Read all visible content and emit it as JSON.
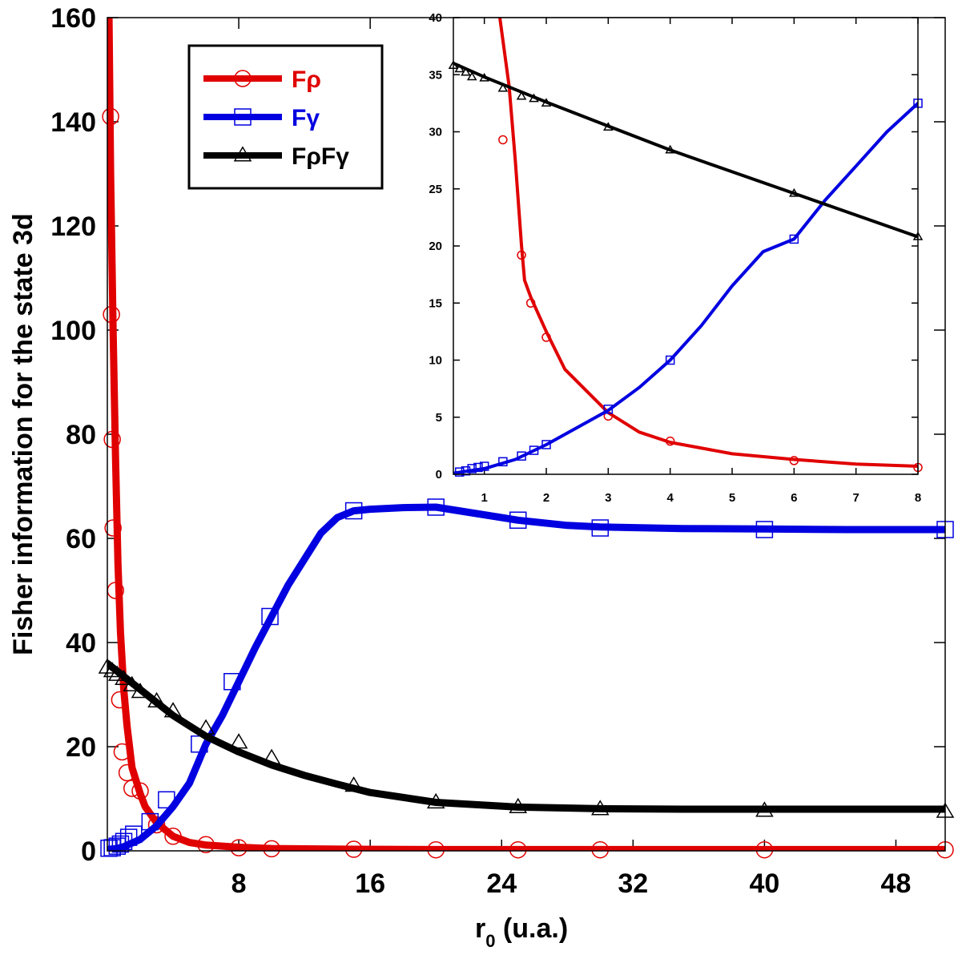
{
  "chart_data": [
    {
      "type": "line",
      "id": "main",
      "title": "",
      "xlabel": "r",
      "xlabel_subscript": "0",
      "xlabel_suffix": " (u.a.)",
      "ylabel": "Fisher information for the state 3d",
      "xlim": [
        0,
        51
      ],
      "ylim": [
        0,
        160
      ],
      "xticks": [
        8,
        16,
        24,
        32,
        40,
        48
      ],
      "xtick_labels": [
        "8",
        "16",
        "24",
        "32",
        "40",
        "48"
      ],
      "yticks": [
        0,
        20,
        40,
        60,
        80,
        100,
        120,
        140,
        160
      ],
      "ytick_labels": [
        "0",
        "20",
        "40",
        "60",
        "80",
        "100",
        "120",
        "140",
        "160"
      ],
      "legend_position": "top-left",
      "series": [
        {
          "name": "Fρ",
          "color": "#e00000",
          "marker": "circle",
          "line": [
            [
              0.1,
              160
            ],
            [
              0.2,
              130
            ],
            [
              0.35,
              100
            ],
            [
              0.5,
              75
            ],
            [
              0.65,
              55
            ],
            [
              0.8,
              42
            ],
            [
              1,
              31
            ],
            [
              1.2,
              24
            ],
            [
              1.5,
              16
            ],
            [
              1.75,
              13.5
            ],
            [
              2,
              11
            ],
            [
              2.3,
              8.5
            ],
            [
              3,
              5.4
            ],
            [
              4,
              2.8
            ],
            [
              5,
              1.6
            ],
            [
              6,
              1.1
            ],
            [
              8,
              0.7
            ],
            [
              10,
              0.45
            ],
            [
              15,
              0.3
            ],
            [
              20,
              0.25
            ],
            [
              25,
              0.25
            ],
            [
              30,
              0.25
            ],
            [
              40,
              0.25
            ],
            [
              51,
              0.25
            ]
          ],
          "markers": [
            [
              0.2,
              141
            ],
            [
              0.25,
              103
            ],
            [
              0.3,
              79
            ],
            [
              0.35,
              62
            ],
            [
              0.5,
              50
            ],
            [
              0.75,
              29
            ],
            [
              0.9,
              19
            ],
            [
              1.2,
              15
            ],
            [
              1.5,
              12
            ],
            [
              2,
              11.5
            ],
            [
              3,
              5
            ],
            [
              4,
              2.8
            ],
            [
              6,
              1.2
            ],
            [
              8,
              0.6
            ],
            [
              10,
              0.4
            ],
            [
              15,
              0.3
            ],
            [
              20,
              0.2
            ],
            [
              25,
              0.2
            ],
            [
              30,
              0.2
            ],
            [
              40,
              0.2
            ],
            [
              51,
              0.2
            ]
          ]
        },
        {
          "name": "Fγ",
          "color": "#0000e0",
          "marker": "square",
          "line": [
            [
              0.1,
              0.3
            ],
            [
              0.5,
              0.4
            ],
            [
              1,
              0.8
            ],
            [
              2,
              2.2
            ],
            [
              3,
              4.8
            ],
            [
              4,
              8.5
            ],
            [
              5,
              13
            ],
            [
              6,
              20.5
            ],
            [
              7,
              26
            ],
            [
              8,
              32.5
            ],
            [
              9,
              39
            ],
            [
              10,
              45
            ],
            [
              11,
              51
            ],
            [
              12,
              56
            ],
            [
              13,
              61
            ],
            [
              14,
              64
            ],
            [
              15,
              65.3
            ],
            [
              16,
              65.6
            ],
            [
              18,
              65.9
            ],
            [
              20,
              66
            ],
            [
              22,
              65
            ],
            [
              25,
              63.5
            ],
            [
              28,
              62.5
            ],
            [
              30,
              62.2
            ],
            [
              35,
              61.9
            ],
            [
              40,
              61.8
            ],
            [
              45,
              61.7
            ],
            [
              51,
              61.7
            ]
          ],
          "markers": [
            [
              0.1,
              0.5
            ],
            [
              0.3,
              0.6
            ],
            [
              0.6,
              0.9
            ],
            [
              0.8,
              1.3
            ],
            [
              1,
              1.8
            ],
            [
              1.3,
              2.6
            ],
            [
              1.6,
              3.2
            ],
            [
              2.6,
              5.6
            ],
            [
              3.6,
              9.8
            ],
            [
              5.6,
              20.5
            ],
            [
              7.6,
              32.5
            ],
            [
              9.9,
              45
            ],
            [
              15,
              65.3
            ],
            [
              20,
              66
            ],
            [
              25,
              63.5
            ],
            [
              30,
              62
            ],
            [
              40,
              61.7
            ],
            [
              51,
              61.7
            ]
          ]
        },
        {
          "name": "FρFγ",
          "color": "#000000",
          "marker": "triangle",
          "line": [
            [
              0,
              36
            ],
            [
              1,
              33.5
            ],
            [
              2,
              31
            ],
            [
              3,
              28.5
            ],
            [
              4,
              26
            ],
            [
              5,
              24
            ],
            [
              6,
              22
            ],
            [
              7,
              20.5
            ],
            [
              8,
              19
            ],
            [
              10,
              16.5
            ],
            [
              12,
              14.5
            ],
            [
              14,
              12.8
            ],
            [
              16,
              11.2
            ],
            [
              20,
              9.3
            ],
            [
              25,
              8.4
            ],
            [
              30,
              8.1
            ],
            [
              35,
              8
            ],
            [
              40,
              8
            ],
            [
              45,
              8
            ],
            [
              51,
              8
            ]
          ],
          "markers": [
            [
              0,
              35.2
            ],
            [
              0.3,
              34.5
            ],
            [
              0.6,
              33.8
            ],
            [
              1,
              33
            ],
            [
              1.5,
              31.8
            ],
            [
              2,
              30.5
            ],
            [
              3,
              28.7
            ],
            [
              4,
              26.8
            ],
            [
              6,
              23.5
            ],
            [
              8,
              20.8
            ],
            [
              10,
              17.8
            ],
            [
              15,
              12.5
            ],
            [
              20,
              9.3
            ],
            [
              25,
              8.4
            ],
            [
              30,
              8
            ],
            [
              40,
              7.7
            ],
            [
              51,
              7.5
            ]
          ]
        }
      ]
    },
    {
      "type": "line",
      "id": "inset",
      "title": "",
      "xlabel": "",
      "ylabel": "",
      "xlim": [
        0.5,
        8
      ],
      "ylim": [
        0,
        40
      ],
      "xticks": [
        1,
        2,
        3,
        4,
        5,
        6,
        7,
        8
      ],
      "xtick_labels": [
        "1",
        "2",
        "3",
        "4",
        "5",
        "6",
        "7",
        "8"
      ],
      "yticks": [
        0,
        5,
        10,
        15,
        20,
        25,
        30,
        35,
        40
      ],
      "ytick_labels": [
        "0",
        "5",
        "10",
        "15",
        "20",
        "25",
        "30",
        "35",
        "40"
      ],
      "series": [
        {
          "name": "Fρ",
          "color": "#e00000",
          "marker": "circle",
          "line": [
            [
              1.25,
              40
            ],
            [
              1.4,
              34
            ],
            [
              1.5,
              27.5
            ],
            [
              1.6,
              20
            ],
            [
              1.65,
              17
            ],
            [
              1.75,
              15.5
            ],
            [
              2,
              12.5
            ],
            [
              2.3,
              9.2
            ],
            [
              3,
              5.4
            ],
            [
              3.5,
              3.7
            ],
            [
              4,
              2.8
            ],
            [
              5,
              1.8
            ],
            [
              6,
              1.3
            ],
            [
              7,
              0.9
            ],
            [
              8,
              0.7
            ]
          ],
          "markers": [
            [
              1.3,
              29.3
            ],
            [
              1.6,
              19.2
            ],
            [
              1.75,
              15
            ],
            [
              2,
              12
            ],
            [
              3,
              5.1
            ],
            [
              4,
              2.9
            ],
            [
              6,
              1.2
            ],
            [
              8,
              0.6
            ]
          ]
        },
        {
          "name": "Fγ",
          "color": "#0000e0",
          "marker": "square",
          "line": [
            [
              0.5,
              0.1
            ],
            [
              1,
              0.5
            ],
            [
              1.5,
              1.3
            ],
            [
              2,
              2.6
            ],
            [
              2.5,
              4.1
            ],
            [
              3,
              5.6
            ],
            [
              3.5,
              7.6
            ],
            [
              4,
              10
            ],
            [
              4.5,
              13
            ],
            [
              5,
              16.5
            ],
            [
              5.5,
              19.5
            ],
            [
              6,
              20.6
            ],
            [
              6.5,
              24
            ],
            [
              7,
              27
            ],
            [
              7.5,
              30
            ],
            [
              8,
              32.5
            ]
          ],
          "markers": [
            [
              0.6,
              0.2
            ],
            [
              0.7,
              0.3
            ],
            [
              0.8,
              0.5
            ],
            [
              0.9,
              0.6
            ],
            [
              1,
              0.7
            ],
            [
              1.3,
              1.1
            ],
            [
              1.6,
              1.6
            ],
            [
              1.8,
              2.1
            ],
            [
              2,
              2.6
            ],
            [
              3,
              5.7
            ],
            [
              4,
              10
            ],
            [
              6,
              20.6
            ],
            [
              8,
              32.5
            ]
          ]
        },
        {
          "name": "FρFγ",
          "color": "#000000",
          "marker": "triangle",
          "line": [
            [
              0.5,
              36
            ],
            [
              1,
              34.8
            ],
            [
              2,
              32.6
            ],
            [
              3,
              30.5
            ],
            [
              4,
              28.4
            ],
            [
              5,
              26.5
            ],
            [
              6,
              24.6
            ],
            [
              7,
              22.7
            ],
            [
              8,
              20.8
            ]
          ],
          "markers": [
            [
              0.5,
              35.8
            ],
            [
              0.6,
              35.5
            ],
            [
              0.7,
              35.2
            ],
            [
              0.8,
              34.8
            ],
            [
              1,
              34.7
            ],
            [
              1.3,
              33.8
            ],
            [
              1.6,
              33.1
            ],
            [
              1.8,
              32.9
            ],
            [
              2,
              32.5
            ],
            [
              3,
              30.4
            ],
            [
              4,
              28.4
            ],
            [
              6,
              24.6
            ],
            [
              8,
              20.8
            ]
          ]
        }
      ]
    }
  ]
}
